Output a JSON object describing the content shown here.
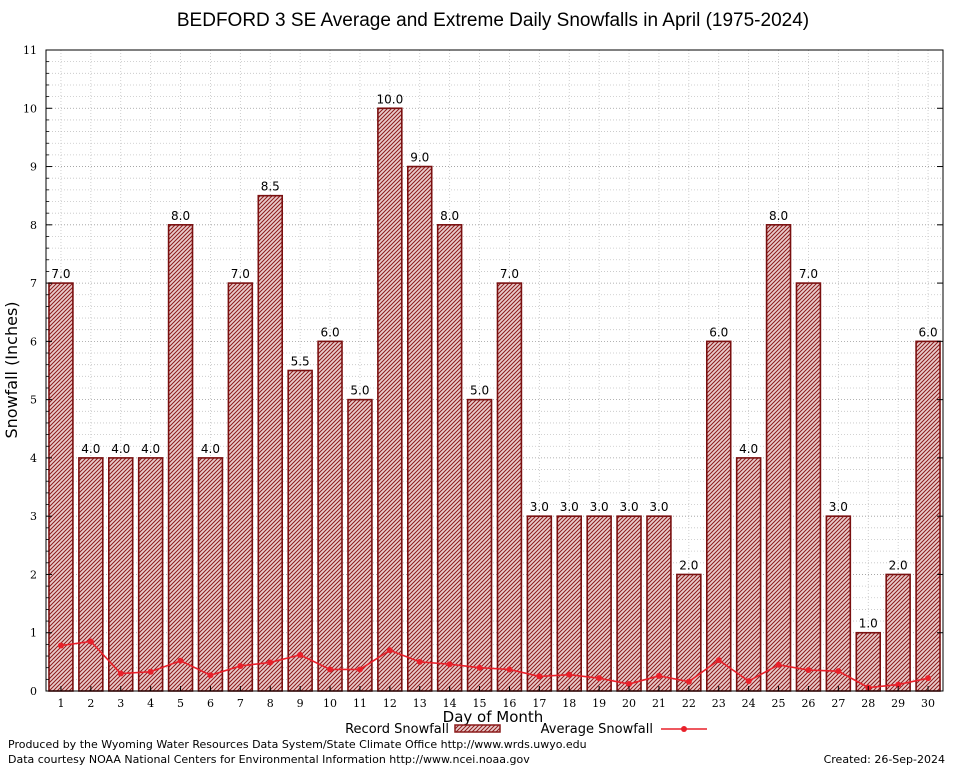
{
  "chart_data": {
    "type": "bar",
    "title": "BEDFORD 3 SE Average and Extreme Daily Snowfalls in April (1975-2024)",
    "xlabel": "Day of Month",
    "ylabel": "Snowfall (Inches)",
    "ylim": [
      0,
      11
    ],
    "yticks": [
      "0",
      "1",
      "2",
      "3",
      "4",
      "5",
      "6",
      "7",
      "8",
      "9",
      "10",
      "11"
    ],
    "grid": true,
    "categories": [
      "1",
      "2",
      "3",
      "4",
      "5",
      "6",
      "7",
      "8",
      "9",
      "10",
      "11",
      "12",
      "13",
      "14",
      "15",
      "16",
      "17",
      "18",
      "19",
      "20",
      "21",
      "22",
      "23",
      "24",
      "25",
      "26",
      "27",
      "28",
      "29",
      "30"
    ],
    "series": [
      {
        "name": "Record Snowfall",
        "kind": "bar",
        "color": "#8b1a1a",
        "values": [
          7.0,
          4.0,
          4.0,
          4.0,
          8.0,
          4.0,
          7.0,
          8.5,
          5.5,
          6.0,
          5.0,
          10.0,
          9.0,
          8.0,
          5.0,
          7.0,
          3.0,
          3.0,
          3.0,
          3.0,
          3.0,
          2.0,
          6.0,
          4.0,
          8.0,
          7.0,
          3.0,
          1.0,
          2.0,
          6.0
        ],
        "labels": [
          "7.0",
          "4.0",
          "4.0",
          "4.0",
          "8.0",
          "4.0",
          "7.0",
          "8.5",
          "5.5",
          "6.0",
          "5.0",
          "10.0",
          "9.0",
          "8.0",
          "5.0",
          "7.0",
          "3.0",
          "3.0",
          "3.0",
          "3.0",
          "3.0",
          "2.0",
          "6.0",
          "4.0",
          "8.0",
          "7.0",
          "3.0",
          "1.0",
          "2.0",
          "6.0"
        ]
      },
      {
        "name": "Average Snowfall",
        "kind": "line",
        "color": "#e8202a",
        "values": [
          0.78,
          0.85,
          0.3,
          0.33,
          0.52,
          0.27,
          0.43,
          0.49,
          0.62,
          0.37,
          0.37,
          0.7,
          0.5,
          0.46,
          0.4,
          0.37,
          0.25,
          0.28,
          0.22,
          0.12,
          0.26,
          0.16,
          0.53,
          0.17,
          0.45,
          0.36,
          0.34,
          0.06,
          0.11,
          0.22
        ]
      }
    ],
    "legend": "bottom-center"
  },
  "footer": {
    "produced_by": "Produced by the Wyoming Water Resources Data System/State Climate Office http://www.wrds.uwyo.edu",
    "courtesy": "Data courtesy NOAA National Centers for Environmental Information http://www.ncei.noaa.gov",
    "created": "Created:  26-Sep-2024"
  }
}
